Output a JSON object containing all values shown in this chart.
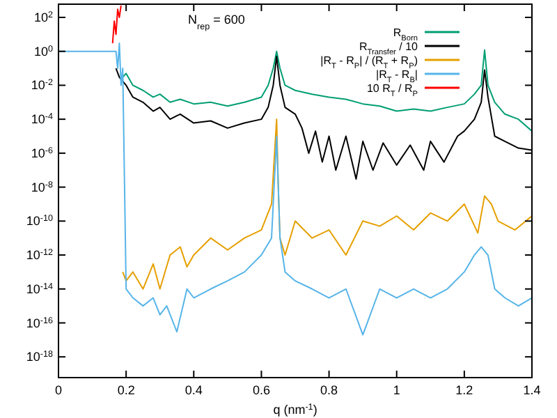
{
  "chart_data": {
    "type": "line",
    "xlabel": "q (nm$^{-1}$)",
    "annotations": [
      "N$_{rep}$ = 600"
    ],
    "log": "y",
    "grid": false,
    "legend": "top right",
    "line_style": "solid",
    "xlim": [
      0,
      1.4
    ],
    "xticks": [
      0,
      0.2,
      0.4,
      0.6,
      0.8,
      1,
      1.2,
      1.4
    ],
    "ylim": [
      6e-20,
      600
    ],
    "yticks": [
      {
        "value": 1e-18,
        "label": "10$^{-18}$"
      },
      {
        "value": 1e-16,
        "label": "10$^{-16}$"
      },
      {
        "value": 1e-14,
        "label": "10$^{-14}$"
      },
      {
        "value": 1e-12,
        "label": "10$^{-12}$"
      },
      {
        "value": 1e-10,
        "label": "10$^{-10}$"
      },
      {
        "value": 1e-08,
        "label": "10$^{-8}$"
      },
      {
        "value": 1e-06,
        "label": "10$^{-6}$"
      },
      {
        "value": 0.0001,
        "label": "10$^{-4}$"
      },
      {
        "value": 0.01,
        "label": "10$^{-2}$"
      },
      {
        "value": 1,
        "label": "10$^{0}$"
      },
      {
        "value": 100,
        "label": "10$^{2}$"
      }
    ],
    "series": [
      {
        "name": "R$_{Born}$",
        "color": "#009e73",
        "x": [
          0.19,
          0.2,
          0.22,
          0.25,
          0.28,
          0.3,
          0.33,
          0.36,
          0.4,
          0.45,
          0.5,
          0.55,
          0.6,
          0.62,
          0.635,
          0.645,
          0.655,
          0.67,
          0.7,
          0.75,
          0.8,
          0.85,
          0.9,
          0.95,
          1.0,
          1.05,
          1.1,
          1.15,
          1.2,
          1.23,
          1.25,
          1.26,
          1.27,
          1.29,
          1.32,
          1.36,
          1.4
        ],
        "values": [
          0.03,
          0.05,
          0.01,
          0.005,
          0.002,
          0.003,
          0.001,
          0.0015,
          0.0008,
          0.001,
          0.0006,
          0.001,
          0.002,
          0.01,
          0.1,
          1,
          0.1,
          0.01,
          0.005,
          0.003,
          0.002,
          0.0015,
          0.0008,
          0.0006,
          0.0003,
          0.0004,
          0.0003,
          0.0005,
          0.0008,
          0.003,
          0.01,
          1.2,
          0.01,
          0.001,
          0.0002,
          0.0001,
          2e-05
        ]
      },
      {
        "name": "R$_{Transfer}$ / 10",
        "color": "#000000",
        "x": [
          0.17,
          0.18,
          0.2,
          0.22,
          0.25,
          0.28,
          0.3,
          0.33,
          0.36,
          0.4,
          0.45,
          0.5,
          0.55,
          0.6,
          0.62,
          0.635,
          0.645,
          0.655,
          0.67,
          0.7,
          0.72,
          0.74,
          0.76,
          0.78,
          0.8,
          0.82,
          0.85,
          0.88,
          0.9,
          0.93,
          0.96,
          1.0,
          1.04,
          1.08,
          1.1,
          1.14,
          1.18,
          1.2,
          1.23,
          1.25,
          1.26,
          1.27,
          1.29,
          1.32,
          1.36,
          1.4
        ],
        "values": [
          0.1,
          0.03,
          0.01,
          0.002,
          0.001,
          0.0003,
          0.0005,
          0.0001,
          0.0002,
          6e-05,
          8e-05,
          3e-05,
          6e-05,
          0.0001,
          0.0005,
          0.01,
          0.5,
          0.01,
          0.0005,
          0.0002,
          3e-05,
          1e-06,
          2e-05,
          3e-07,
          1e-05,
          1e-07,
          1e-05,
          3e-08,
          5e-06,
          1e-07,
          4e-06,
          2e-07,
          3e-06,
          1e-07,
          5e-06,
          3e-07,
          1e-05,
          2e-05,
          0.0001,
          0.001,
          0.08,
          0.002,
          1e-05,
          5e-06,
          2e-06,
          1.5e-06
        ]
      },
      {
        "name": "|R$_{T}$ - R$_{P}$| / (R$_{T}$ + R$_{P}$)",
        "color": "#e69f00",
        "x": [
          0.19,
          0.2,
          0.22,
          0.25,
          0.28,
          0.3,
          0.33,
          0.36,
          0.38,
          0.4,
          0.45,
          0.5,
          0.55,
          0.6,
          0.63,
          0.645,
          0.65,
          0.655,
          0.67,
          0.7,
          0.75,
          0.8,
          0.85,
          0.9,
          0.95,
          1.0,
          1.05,
          1.1,
          1.15,
          1.2,
          1.24,
          1.26,
          1.28,
          1.3,
          1.35,
          1.4
        ],
        "values": [
          1e-13,
          3e-14,
          1e-13,
          1e-14,
          3e-13,
          1e-14,
          1e-12,
          3e-12,
          2e-13,
          1e-12,
          1e-11,
          2e-12,
          1e-11,
          3e-11,
          1e-09,
          0.0001,
          1e-08,
          1e-11,
          1e-12,
          1e-10,
          1e-11,
          3e-11,
          1e-12,
          1e-10,
          5e-11,
          2e-10,
          3e-11,
          3e-10,
          1e-10,
          1e-09,
          2e-11,
          3e-09,
          1e-09,
          1e-10,
          3e-11,
          2e-10
        ]
      },
      {
        "name": "|R$_{T}$ - R$_{B}$|",
        "color": "#56b4e9",
        "x": [
          0,
          0.17,
          0.175,
          0.18,
          0.185,
          0.19,
          0.2,
          0.22,
          0.25,
          0.28,
          0.3,
          0.32,
          0.35,
          0.38,
          0.4,
          0.45,
          0.5,
          0.55,
          0.6,
          0.63,
          0.645,
          0.655,
          0.67,
          0.7,
          0.75,
          0.8,
          0.85,
          0.9,
          0.95,
          1.0,
          1.05,
          1.1,
          1.15,
          1.2,
          1.23,
          1.25,
          1.27,
          1.29,
          1.32,
          1.36,
          1.4
        ],
        "values": [
          1,
          1,
          0.1,
          3,
          0.01,
          0.1,
          1e-14,
          3e-15,
          1e-15,
          3e-15,
          3e-16,
          1e-15,
          3e-17,
          1e-14,
          3e-15,
          1e-14,
          3e-14,
          1e-13,
          1e-12,
          1e-11,
          1e-05,
          1e-11,
          1e-13,
          3e-14,
          1e-14,
          3e-15,
          1e-14,
          2e-17,
          1e-14,
          3e-15,
          1e-14,
          3e-15,
          1e-14,
          1e-13,
          1e-12,
          3e-12,
          1e-12,
          1e-14,
          3e-15,
          1e-15,
          3e-15
        ]
      },
      {
        "name": "10 R$_{T}$ / R$_{P}$",
        "color": "#ff0000",
        "x": [
          0.16,
          0.165,
          0.17,
          0.175,
          0.18,
          0.185
        ],
        "values": [
          3,
          60,
          10,
          300,
          100,
          500
        ]
      }
    ]
  }
}
